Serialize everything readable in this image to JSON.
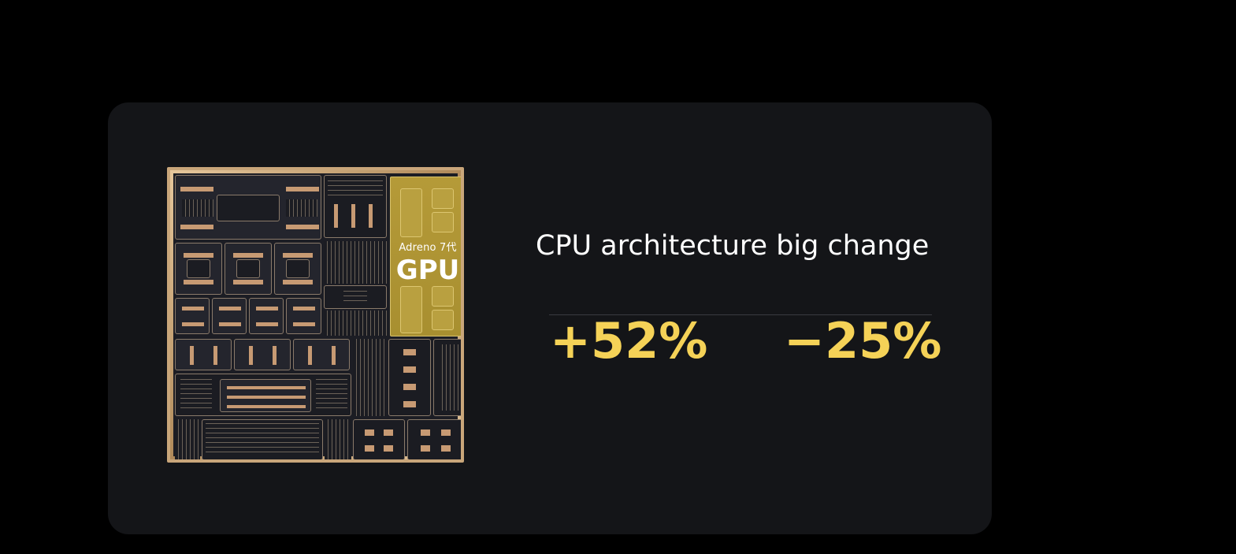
{
  "chip": {
    "gpu_subtitle": "Adreno 7代",
    "gpu_label": "GPU",
    "gpu_color": "#b59a38",
    "frame_color": "#c9a67a"
  },
  "feature": {
    "title": "CPU architecture big change",
    "stats": [
      {
        "value": "+52%"
      },
      {
        "value": "−25%"
      }
    ],
    "accent_color": "#f5d257"
  }
}
